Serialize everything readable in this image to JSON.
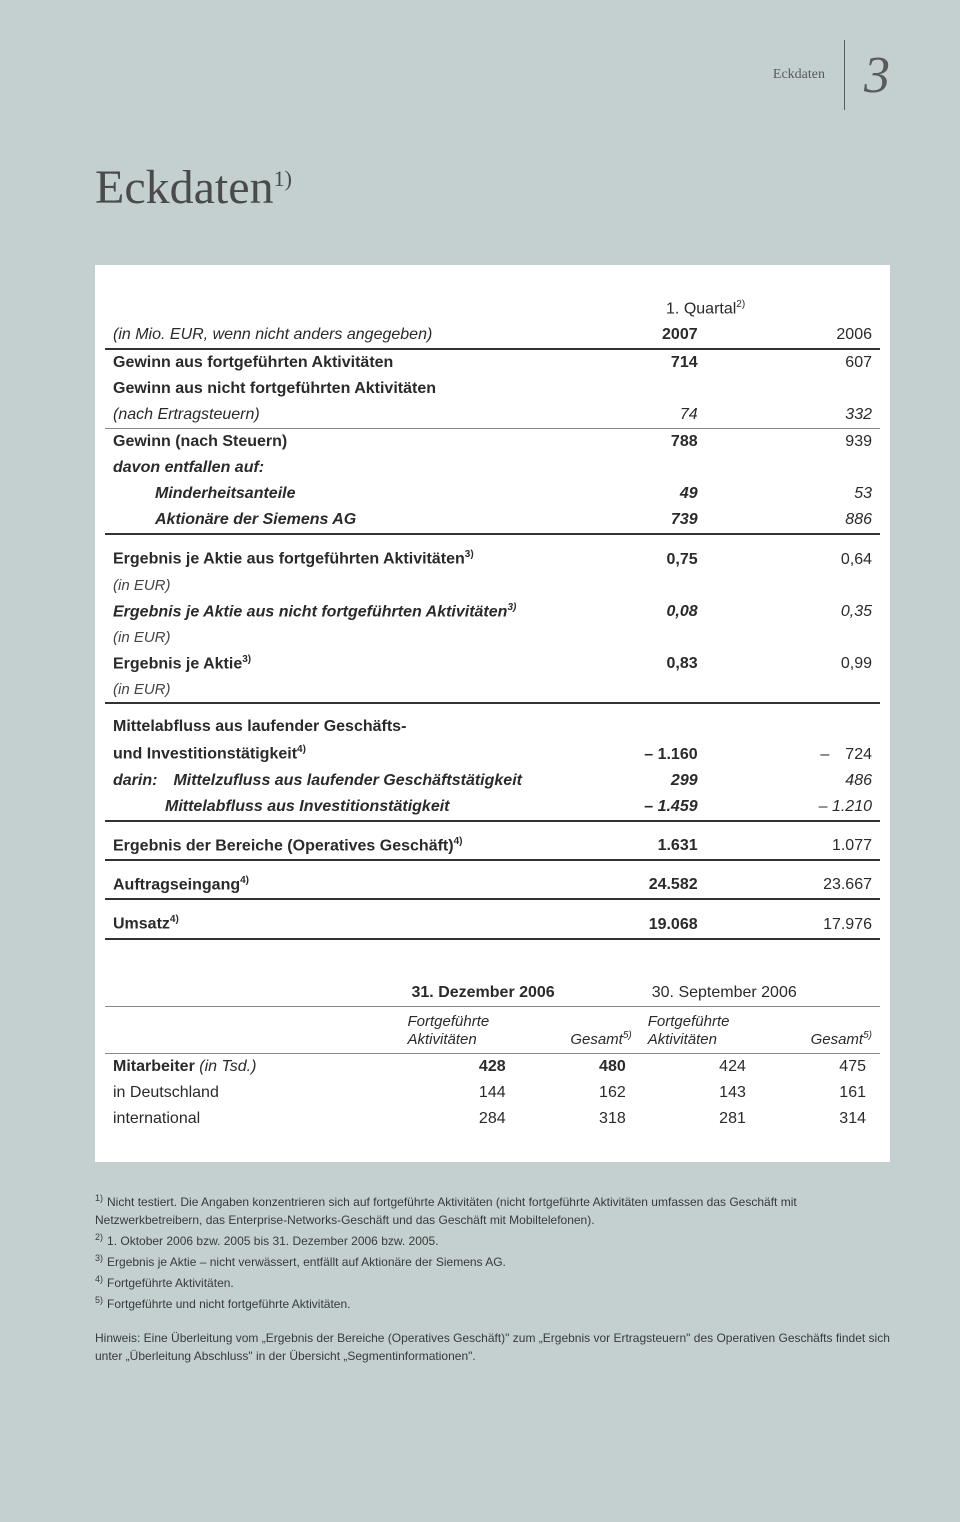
{
  "header": {
    "label": "Eckdaten",
    "page_num": "3"
  },
  "title": {
    "text": "Eckdaten",
    "sup": "1)"
  },
  "table1": {
    "period_label": "1. Quartal",
    "period_sup": "2)",
    "unit_note": "(in Mio. EUR, wenn nicht anders angegeben)",
    "years": [
      "2007",
      "2006"
    ],
    "rows": [
      {
        "label": "Gewinn aus fortgeführten Aktivitäten",
        "bold": true,
        "v": [
          "714",
          "607"
        ]
      },
      {
        "label": "Gewinn aus nicht fortgeführten Aktivitäten",
        "bold": true,
        "v": [
          "",
          ""
        ]
      },
      {
        "label": "(nach Ertragsteuern)",
        "italic": true,
        "v": [
          "74",
          "332"
        ],
        "rule": "thin"
      },
      {
        "label": "Gewinn (nach Steuern)",
        "bold": true,
        "v": [
          "788",
          "939"
        ]
      },
      {
        "label": "davon entfallen auf:",
        "italic": true,
        "bold": true,
        "v": [
          "",
          ""
        ]
      },
      {
        "label": "Minderheitsanteile",
        "indent": 1,
        "italic": true,
        "bold": true,
        "v": [
          "49",
          "53"
        ]
      },
      {
        "label": "Aktionäre der Siemens AG",
        "indent": 1,
        "italic": true,
        "bold": true,
        "v": [
          "739",
          "886"
        ],
        "rule": "thick"
      },
      {
        "label": "Ergebnis je Aktie aus fortgeführten Aktivitäten",
        "sup": "3)",
        "bold": true,
        "v": [
          "0,75",
          "0,64"
        ],
        "gap": true
      },
      {
        "label": "(in EUR)",
        "sub": true,
        "v": [
          "",
          ""
        ]
      },
      {
        "label": "Ergebnis je Aktie aus nicht fortgeführten Aktivitäten",
        "sup": "3)",
        "italic": true,
        "bold": true,
        "v": [
          "0,08",
          "0,35"
        ]
      },
      {
        "label": "(in EUR)",
        "sub": true,
        "v": [
          "",
          ""
        ]
      },
      {
        "label": "Ergebnis je Aktie",
        "sup": "3)",
        "bold": true,
        "v": [
          "0,83",
          "0,99"
        ]
      },
      {
        "label": "(in EUR)",
        "sub": true,
        "v": [
          "",
          ""
        ],
        "rule": "thick"
      },
      {
        "label": "Mittelabfluss aus laufender Geschäfts-",
        "bold": true,
        "v": [
          "",
          ""
        ],
        "gap": true
      },
      {
        "label": "und Investitionstätigkeit",
        "sup": "4)",
        "bold": true,
        "v": [
          "– 1.160",
          "– 724"
        ]
      },
      {
        "label": "darin: Mittelzufluss aus laufender Geschäftstätigkeit",
        "italic": true,
        "bold": true,
        "v": [
          "299",
          "486"
        ]
      },
      {
        "label": "Mittelabfluss aus Investitionstätigkeit",
        "indent": 2,
        "italic": true,
        "bold": true,
        "v": [
          "– 1.459",
          "– 1.210"
        ],
        "rule": "thick"
      },
      {
        "label": "Ergebnis der Bereiche (Operatives Geschäft)",
        "sup": "4)",
        "bold": true,
        "v": [
          "1.631",
          "1.077"
        ],
        "rule": "thick",
        "gap": true
      },
      {
        "label": "Auftragseingang",
        "sup": "4)",
        "bold": true,
        "v": [
          "24.582",
          "23.667"
        ],
        "rule": "thick",
        "gap": true
      },
      {
        "label": "Umsatz",
        "sup": "4)",
        "bold": true,
        "v": [
          "19.068",
          "17.976"
        ],
        "rule": "thick",
        "gap": true
      }
    ]
  },
  "table2": {
    "dates": [
      "31. Dezember 2006",
      "30. September 2006"
    ],
    "sub_headers": [
      "Fortgeführte Aktivitäten",
      "Gesamt",
      "Fortgeführte Aktivitäten",
      "Gesamt"
    ],
    "sub_sup": "5)",
    "rows": [
      {
        "label": "Mitarbeiter",
        "note": "(in Tsd.)",
        "bold": true,
        "v": [
          "428",
          "480",
          "424",
          "475"
        ]
      },
      {
        "label": "in Deutschland",
        "v": [
          "144",
          "162",
          "143",
          "161"
        ]
      },
      {
        "label": "international",
        "v": [
          "284",
          "318",
          "281",
          "314"
        ]
      }
    ]
  },
  "footnotes": [
    {
      "n": "1)",
      "t": "Nicht testiert. Die Angaben konzentrieren sich auf fortgeführte Aktivitäten (nicht fortgeführte Aktivitäten umfassen das Geschäft mit Netzwerkbetreibern, das Enterprise-Networks-Geschäft und das Geschäft mit Mobiltelefonen)."
    },
    {
      "n": "2)",
      "t": "1. Oktober 2006 bzw. 2005 bis 31. Dezember 2006 bzw. 2005."
    },
    {
      "n": "3)",
      "t": "Ergebnis je Aktie – nicht verwässert, entfällt auf Aktionäre der Siemens AG."
    },
    {
      "n": "4)",
      "t": "Fortgeführte Aktivitäten."
    },
    {
      "n": "5)",
      "t": "Fortgeführte und nicht fortgeführte Aktivitäten."
    }
  ],
  "hint": "Hinweis: Eine Überleitung vom „Ergebnis der Bereiche (Operatives Geschäft)\" zum „Ergebnis vor Ertragsteuern\" des Operativen Geschäfts findet sich unter „Überleitung Abschluss\" in der Übersicht „Segmentinformationen\"."
}
